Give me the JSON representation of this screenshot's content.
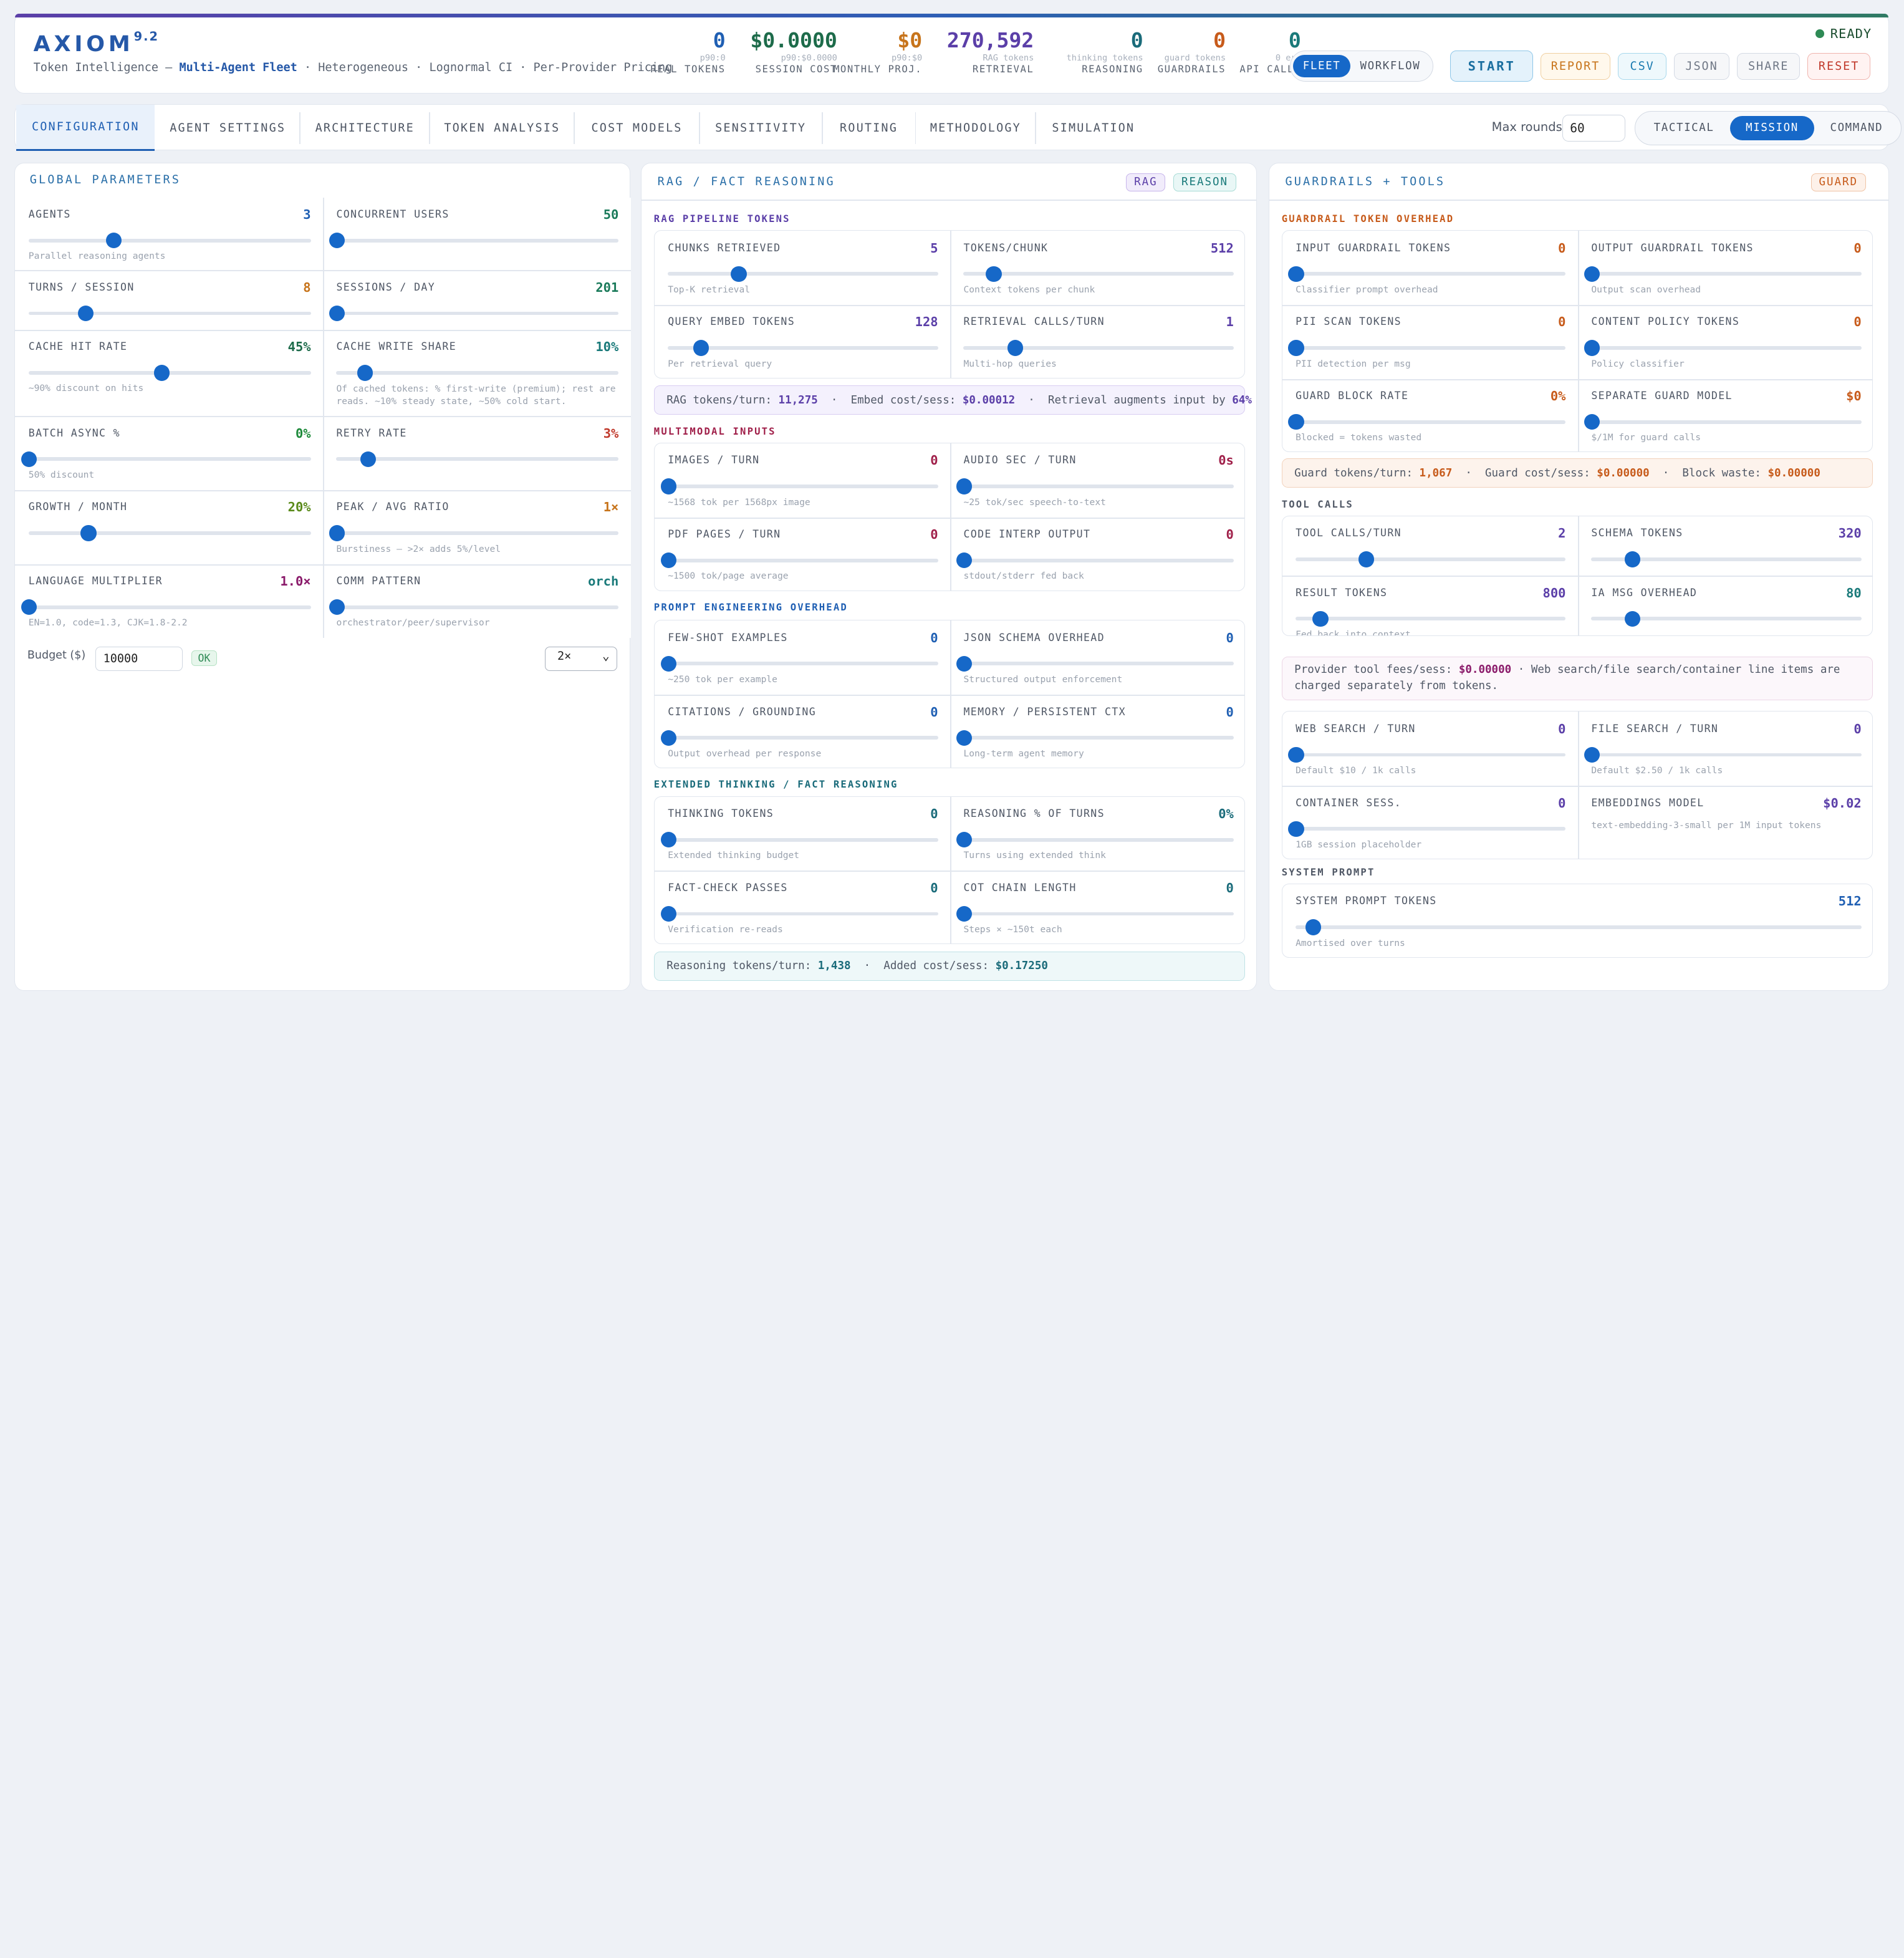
{
  "header": {
    "logo": "AXIOM",
    "version": "9.2",
    "subtitle_prefix": "Token Intelligence —",
    "subtitle_mode": "Multi-Agent Fleet",
    "subtitle_suffix": "· Heterogeneous · Lognormal CI · Per-Provider Pricing",
    "status": "READY",
    "stats": [
      {
        "value": "0",
        "sub": "p90:0",
        "label": "REAL TOKENS",
        "color": "#1f5fb3"
      },
      {
        "value": "$0.0000",
        "sub": "p90:$0.0000",
        "label": "SESSION COST",
        "color": "#1d6b4a"
      },
      {
        "value": "$0",
        "sub": "p90:$0",
        "label": "MONTHLY PROJ.",
        "color": "#c7741b"
      },
      {
        "value": "270,592",
        "sub": "RAG tokens",
        "label": "RETRIEVAL",
        "color": "#5b3fa8"
      },
      {
        "value": "0",
        "sub": "thinking tokens",
        "label": "REASONING",
        "color": "#1a6b7a"
      },
      {
        "value": "0",
        "sub": "guard tokens",
        "label": "GUARDRAILS",
        "color": "#c75b1b"
      },
      {
        "value": "0",
        "sub": "0 err",
        "label": "API CALLS",
        "color": "#1a7a7a"
      }
    ],
    "view_toggle": [
      "FLEET",
      "WORKFLOW"
    ],
    "buttons": [
      "START",
      "REPORT",
      "CSV",
      "JSON",
      "SHARE",
      "RESET"
    ]
  },
  "tabs": [
    "CONFIGURATION",
    "AGENT SETTINGS",
    "ARCHITECTURE",
    "TOKEN ANALYSIS",
    "COST MODELS",
    "SENSITIVITY",
    "ROUTING",
    "METHODOLOGY",
    "SIMULATION"
  ],
  "max_rounds": {
    "label": "Max rounds",
    "value": "60"
  },
  "mode_toggle": [
    "TACTICAL",
    "MISSION",
    "COMMAND"
  ],
  "global": {
    "title": "GLOBAL PARAMETERS",
    "params": [
      {
        "label": "AGENTS",
        "value": "3",
        "hint": "Parallel reasoning agents",
        "color": "#1f5fb3",
        "level": 0.3
      },
      {
        "label": "CONCURRENT USERS",
        "value": "50",
        "hint": "",
        "color": "#1a7a5a",
        "level": 0.0
      },
      {
        "label": "TURNS / SESSION",
        "value": "8",
        "hint": "",
        "color": "#c7741b",
        "level": 0.2
      },
      {
        "label": "SESSIONS / DAY",
        "value": "201",
        "hint": "",
        "color": "#1a7a5a",
        "level": 0.0
      },
      {
        "label": "CACHE HIT RATE",
        "value": "45%",
        "hint": "~90% discount on hits",
        "color": "#1d6b4a",
        "level": 0.47
      },
      {
        "label": "CACHE WRITE SHARE",
        "value": "10%",
        "hint": "Of cached tokens: % first-write (premium); rest are reads. ~10% steady state, ~50% cold start.",
        "color": "#1a7a7a",
        "level": 0.1
      },
      {
        "label": "BATCH ASYNC %",
        "value": "0%",
        "hint": "50% discount",
        "color": "#1d8a3a",
        "level": 0.0
      },
      {
        "label": "RETRY RATE",
        "value": "3%",
        "hint": "",
        "color": "#c0392b",
        "level": 0.11
      },
      {
        "label": "GROWTH / MONTH",
        "value": "20%",
        "hint": "",
        "color": "#5a8a1a",
        "level": 0.21
      },
      {
        "label": "PEAK / AVG RATIO",
        "value": "1×",
        "hint": "Burstiness — >2× adds 5%/level",
        "color": "#c7741b",
        "level": 0.0
      },
      {
        "label": "LANGUAGE MULTIPLIER",
        "value": "1.0×",
        "hint": "EN=1.0, code=1.3, CJK=1.8-2.2",
        "color": "#8a1a6a",
        "level": 0.0
      },
      {
        "label": "COMM PATTERN",
        "value": "orch",
        "hint": "orchestrator/peer/supervisor",
        "color": "#1a7a7a",
        "level": 0.0
      }
    ],
    "budget_label": "Budget ($)",
    "budget_value": "10000",
    "budget_ok": "OK",
    "multiplier": "2×"
  },
  "rag": {
    "title": "RAG / FACT REASONING",
    "badges": [
      "RAG",
      "REASON"
    ],
    "pipeline": {
      "title": "RAG PIPELINE TOKENS",
      "params": [
        {
          "label": "CHUNKS RETRIEVED",
          "value": "5",
          "hint": "Top-K retrieval",
          "color": "#5b3fa8",
          "level": 0.26
        },
        {
          "label": "TOKENS/CHUNK",
          "value": "512",
          "hint": "Context tokens per chunk",
          "color": "#5b3fa8",
          "level": 0.11
        },
        {
          "label": "QUERY EMBED TOKENS",
          "value": "128",
          "hint": "Per retrieval query",
          "color": "#5b3fa8",
          "level": 0.12
        },
        {
          "label": "RETRIEVAL CALLS/TURN",
          "value": "1",
          "hint": "Multi-hop queries",
          "color": "#5b3fa8",
          "level": 0.19
        }
      ],
      "summary": {
        "tokens_label": "RAG tokens/turn:",
        "tokens": "11,275",
        "embed_label": "Embed cost/sess:",
        "embed": "$0.00012",
        "aug_label": "Retrieval augments input by",
        "aug": "64%"
      }
    },
    "multimodal": {
      "title": "MULTIMODAL INPUTS",
      "params": [
        {
          "label": "IMAGES / TURN",
          "value": "0",
          "hint": "~1568 tok per 1568px image",
          "color": "#a0204a",
          "level": 0.0
        },
        {
          "label": "AUDIO SEC / TURN",
          "value": "0s",
          "hint": "~25 tok/sec speech-to-text",
          "color": "#a0204a",
          "level": 0.0
        },
        {
          "label": "PDF PAGES / TURN",
          "value": "0",
          "hint": "~1500 tok/page average",
          "color": "#a0204a",
          "level": 0.0
        },
        {
          "label": "CODE INTERP OUTPUT",
          "value": "0",
          "hint": "stdout/stderr fed back",
          "color": "#a0204a",
          "level": 0.0
        }
      ]
    },
    "prompt": {
      "title": "PROMPT ENGINEERING OVERHEAD",
      "params": [
        {
          "label": "FEW-SHOT EXAMPLES",
          "value": "0",
          "hint": "~250 tok per example",
          "color": "#1f5fb3",
          "level": 0.0
        },
        {
          "label": "JSON SCHEMA OVERHEAD",
          "value": "0",
          "hint": "Structured output enforcement",
          "color": "#1f5fb3",
          "level": 0.0
        },
        {
          "label": "CITATIONS / GROUNDING",
          "value": "0",
          "hint": "Output overhead per response",
          "color": "#1f5fb3",
          "level": 0.0
        },
        {
          "label": "MEMORY / PERSISTENT CTX",
          "value": "0",
          "hint": "Long-term agent memory",
          "color": "#1f5fb3",
          "level": 0.0
        }
      ]
    },
    "thinking": {
      "title": "EXTENDED THINKING / FACT REASONING",
      "params": [
        {
          "label": "THINKING TOKENS",
          "value": "0",
          "hint": "Extended thinking budget",
          "color": "#1a6b7a",
          "level": 0.0
        },
        {
          "label": "REASONING % OF TURNS",
          "value": "0%",
          "hint": "Turns using extended think",
          "color": "#1a6b7a",
          "level": 0.0
        },
        {
          "label": "FACT-CHECK PASSES",
          "value": "0",
          "hint": "Verification re-reads",
          "color": "#1a6b7a",
          "level": 0.0
        },
        {
          "label": "COT CHAIN LENGTH",
          "value": "0",
          "hint": "Steps × ~150t each",
          "color": "#1a6b7a",
          "level": 0.0
        }
      ],
      "summary": {
        "tokens_label": "Reasoning tokens/turn:",
        "tokens": "1,438",
        "cost_label": "Added cost/sess:",
        "cost": "$0.17250"
      }
    }
  },
  "guard": {
    "title": "GUARDRAILS + TOOLS",
    "badge": "GUARD",
    "overhead": {
      "title": "GUARDRAIL TOKEN OVERHEAD",
      "params": [
        {
          "label": "INPUT GUARDRAIL TOKENS",
          "value": "0",
          "hint": "Classifier prompt overhead",
          "color": "#c75b1b",
          "level": 0.0
        },
        {
          "label": "OUTPUT GUARDRAIL TOKENS",
          "value": "0",
          "hint": "Output scan overhead",
          "color": "#c75b1b",
          "level": 0.0
        },
        {
          "label": "PII SCAN TOKENS",
          "value": "0",
          "hint": "PII detection per msg",
          "color": "#c75b1b",
          "level": 0.0
        },
        {
          "label": "CONTENT POLICY TOKENS",
          "value": "0",
          "hint": "Policy classifier",
          "color": "#c75b1b",
          "level": 0.0
        },
        {
          "label": "GUARD BLOCK RATE",
          "value": "0%",
          "hint": "Blocked = tokens wasted",
          "color": "#c75b1b",
          "level": 0.0
        },
        {
          "label": "SEPARATE GUARD MODEL",
          "value": "$0",
          "hint": "$/1M for guard calls",
          "color": "#c75b1b",
          "level": 0.0
        }
      ],
      "summary": {
        "tokens_label": "Guard tokens/turn:",
        "tokens": "1,067",
        "cost_label": "Guard cost/sess:",
        "cost": "$0.00000",
        "waste_label": "Block waste:",
        "waste": "$0.00000"
      }
    },
    "tools": {
      "title": "TOOL CALLS",
      "params": [
        {
          "label": "TOOL CALLS/TURN",
          "value": "2",
          "hint": "",
          "color": "#5b3fa8",
          "level": 0.26
        },
        {
          "label": "SCHEMA TOKENS",
          "value": "320",
          "hint": "",
          "color": "#5b3fa8",
          "level": 0.15
        },
        {
          "label": "RESULT TOKENS",
          "value": "800",
          "hint": "Fed back into context",
          "color": "#5b3fa8",
          "level": 0.09
        },
        {
          "label": "IA MSG OVERHEAD",
          "value": "80",
          "hint": "",
          "color": "#1a7a7a",
          "level": 0.15
        }
      ],
      "note_prefix": "Provider tool fees/sess:",
      "note_fee": "$0.00000",
      "note_suffix": "· Web search/file search/container line items are charged separately from tokens.",
      "extra": [
        {
          "label": "WEB SEARCH / TURN",
          "value": "0",
          "hint": "Default $10 / 1k calls",
          "color": "#5b3fa8",
          "level": 0.0
        },
        {
          "label": "FILE SEARCH / TURN",
          "value": "0",
          "hint": "Default $2.50 / 1k calls",
          "color": "#5b3fa8",
          "level": 0.0
        },
        {
          "label": "CONTAINER SESS.",
          "value": "0",
          "hint": "1GB session placeholder",
          "color": "#5b3fa8",
          "level": 0.0
        },
        {
          "label": "EMBEDDINGS MODEL",
          "value": "$0.02",
          "hint": "text-embedding-3-small per 1M input tokens",
          "color": "#5b3fa8",
          "level": null
        }
      ]
    },
    "system": {
      "title": "SYSTEM PROMPT",
      "label": "SYSTEM PROMPT TOKENS",
      "value": "512",
      "hint": "Amortised over turns",
      "color": "#1f5fb3",
      "level": 0.03
    }
  },
  "colors": {
    "accent": "#1668c8",
    "purple": "#5b3fa8",
    "orange": "#c75b1b",
    "teal": "#1a6b7a",
    "crimson": "#a0204a"
  }
}
